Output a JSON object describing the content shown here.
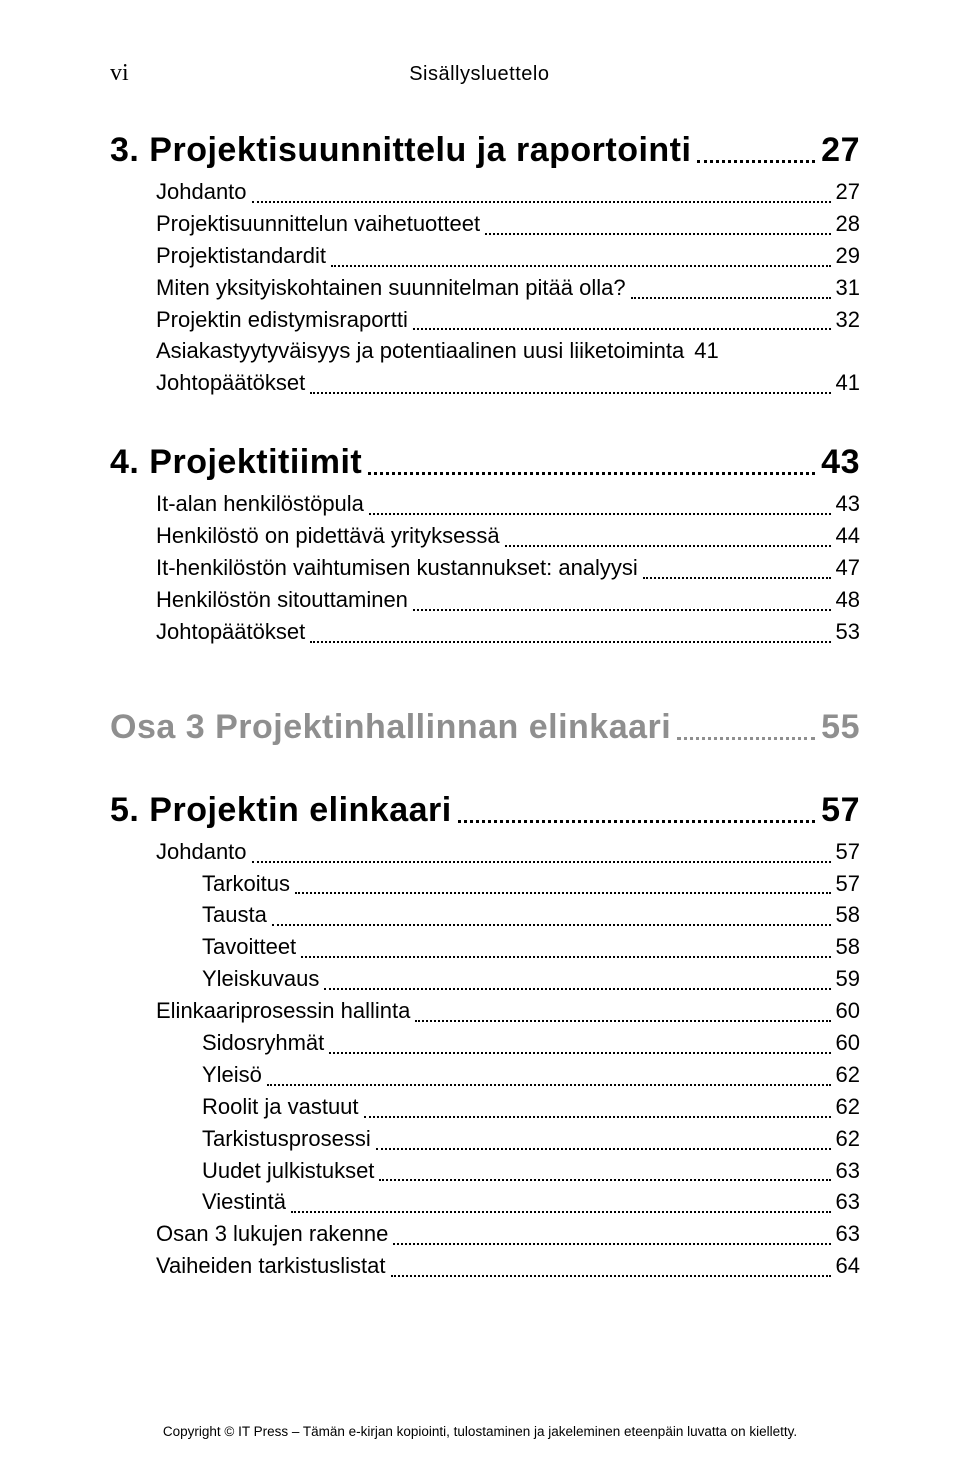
{
  "header": {
    "roman": "vi",
    "title": "Sisällysluettelo"
  },
  "chapter3": {
    "heading": "3. Projektisuunnittelu ja raportointi",
    "page": "27",
    "items": [
      {
        "label": "Johdanto",
        "page": "27",
        "level": "level1"
      },
      {
        "label": "Projektisuunnittelun vaihetuotteet",
        "page": "28",
        "level": "level1"
      },
      {
        "label": "Projektistandardit",
        "page": "29",
        "level": "level1"
      },
      {
        "label": "Miten yksityiskohtainen suunnitelman pitää olla?",
        "page": "31",
        "level": "level1"
      },
      {
        "label": "Projektin edistymisraportti",
        "page": "32",
        "level": "level1"
      },
      {
        "label": "Asiakastyytyväisyys ja potentiaalinen uusi liiketoiminta",
        "page": "41",
        "level": "level1",
        "nodots": true
      },
      {
        "label": "Johtopäätökset",
        "page": "41",
        "level": "level1"
      }
    ]
  },
  "chapter4": {
    "heading": "4. Projektitiimit",
    "page": "43",
    "items": [
      {
        "label": "It-alan henkilöstöpula",
        "page": "43",
        "level": "level1"
      },
      {
        "label": "Henkilöstö on pidettävä yrityksessä",
        "page": "44",
        "level": "level1"
      },
      {
        "label": "It-henkilöstön vaihtumisen kustannukset: analyysi",
        "page": "47",
        "level": "level1"
      },
      {
        "label": "Henkilöstön sitouttaminen",
        "page": "48",
        "level": "level1"
      },
      {
        "label": "Johtopäätökset",
        "page": "53",
        "level": "level1"
      }
    ]
  },
  "part3": {
    "heading": "Osa 3  Projektinhallinnan elinkaari",
    "page": "55"
  },
  "chapter5": {
    "heading": "5. Projektin elinkaari",
    "page": "57",
    "items": [
      {
        "label": "Johdanto",
        "page": "57",
        "level": "level1"
      },
      {
        "label": "Tarkoitus",
        "page": "57",
        "level": "level2"
      },
      {
        "label": "Tausta",
        "page": "58",
        "level": "level2"
      },
      {
        "label": "Tavoitteet",
        "page": "58",
        "level": "level2"
      },
      {
        "label": "Yleiskuvaus",
        "page": "59",
        "level": "level2"
      },
      {
        "label": "Elinkaariprosessin hallinta",
        "page": "60",
        "level": "level1"
      },
      {
        "label": "Sidosryhmät",
        "page": "60",
        "level": "level2"
      },
      {
        "label": "Yleisö",
        "page": "62",
        "level": "level2"
      },
      {
        "label": "Roolit ja vastuut",
        "page": "62",
        "level": "level2"
      },
      {
        "label": "Tarkistusprosessi",
        "page": "62",
        "level": "level2"
      },
      {
        "label": "Uudet julkistukset",
        "page": "63",
        "level": "level2"
      },
      {
        "label": "Viestintä",
        "page": "63",
        "level": "level2"
      },
      {
        "label": "Osan 3 lukujen rakenne",
        "page": "63",
        "level": "level1"
      },
      {
        "label": "Vaiheiden tarkistuslistat",
        "page": "64",
        "level": "level1"
      }
    ]
  },
  "footer": {
    "text": "Copyright © IT Press – Tämän e-kirjan kopiointi, tulostaminen ja jakeleminen eteenpäin luvatta on kielletty."
  }
}
